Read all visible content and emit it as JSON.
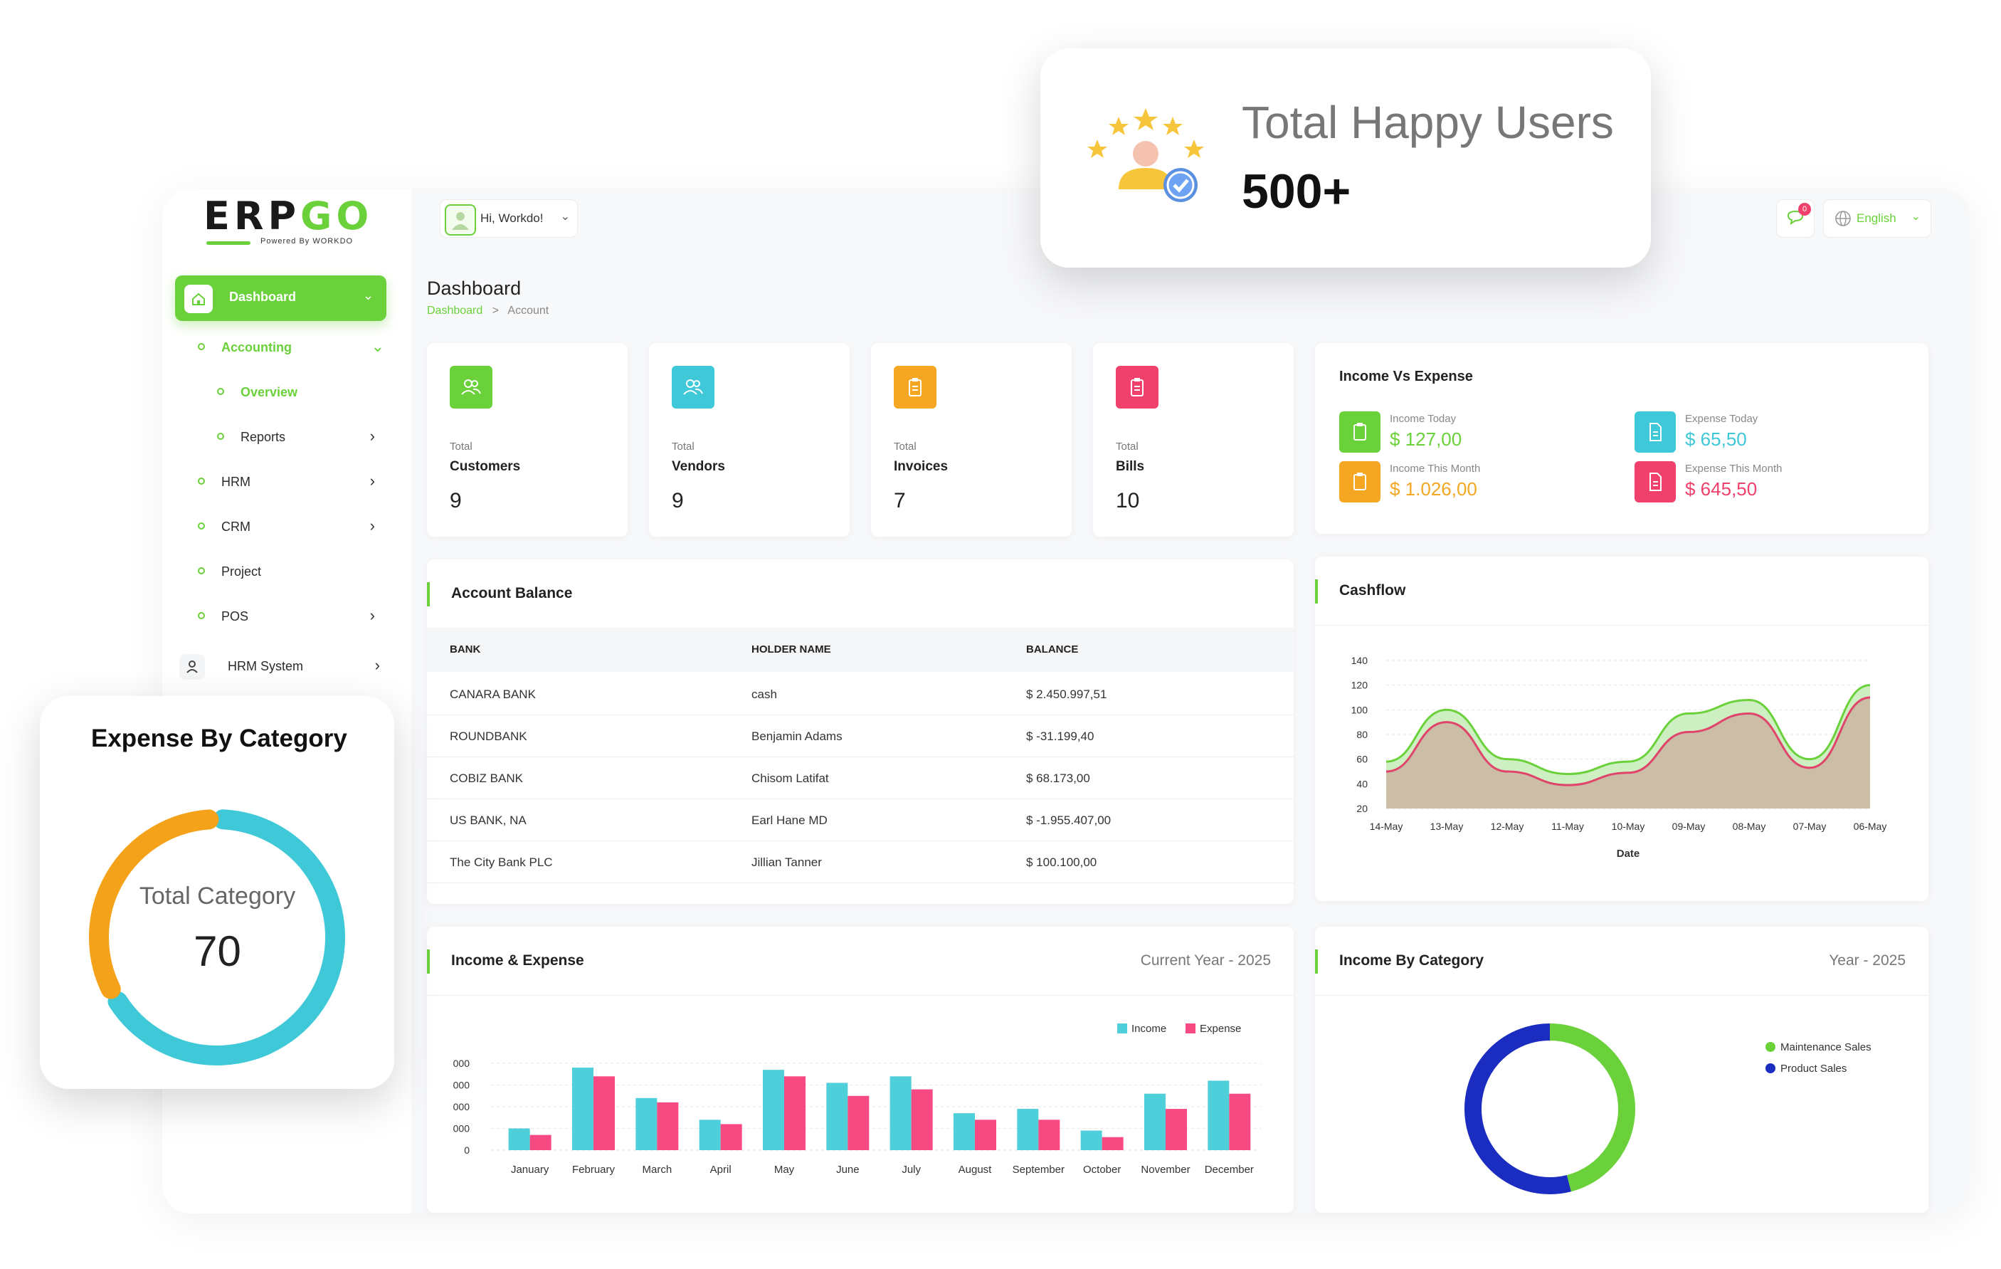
{
  "brand": {
    "logo_main": "ERP",
    "logo_accent": "GO",
    "tagline": "Powered By WORKDO"
  },
  "topbar": {
    "greeting": "Hi, Workdo!",
    "language": "English",
    "notif_count": "0"
  },
  "sidebar": {
    "dashboard": "Dashboard",
    "accounting": "Accounting",
    "overview": "Overview",
    "reports": "Reports",
    "hrm": "HRM",
    "crm": "CRM",
    "project": "Project",
    "pos": "POS",
    "hrm_system": "HRM System"
  },
  "page": {
    "title": "Dashboard",
    "crumb_home": "Dashboard",
    "crumb_sep": ">",
    "crumb_current": "Account"
  },
  "stats": [
    {
      "small": "Total",
      "label": "Customers",
      "value": "9",
      "color": "#6bd13b",
      "icon": "users-icon"
    },
    {
      "small": "Total",
      "label": "Vendors",
      "value": "9",
      "color": "#3ec8d8",
      "icon": "users-icon"
    },
    {
      "small": "Total",
      "label": "Invoices",
      "value": "7",
      "color": "#f5a623",
      "icon": "clipboard-icon"
    },
    {
      "small": "Total",
      "label": "Bills",
      "value": "10",
      "color": "#f0416c",
      "icon": "clipboard-icon"
    }
  ],
  "income_vs_expense": {
    "title": "Income Vs Expense",
    "income_today_label": "Income Today",
    "income_today": "$ 127,00",
    "expense_today_label": "Expense Today",
    "expense_today": "$ 65,50",
    "income_month_label": "Income This Month",
    "income_month": "$ 1.026,00",
    "expense_month_label": "Expense This Month",
    "expense_month": "$ 645,50",
    "colors": {
      "income": "#6bd13b",
      "expense": "#3ec8d8",
      "income_month": "#f5a623",
      "expense_month": "#f0416c"
    }
  },
  "account_balance": {
    "title": "Account Balance",
    "columns": [
      "BANK",
      "HOLDER NAME",
      "BALANCE"
    ],
    "rows": [
      [
        "CANARA BANK",
        "cash",
        "$ 2.450.997,51"
      ],
      [
        "ROUNDBANK",
        "Benjamin Adams",
        "$ -31.199,40"
      ],
      [
        "COBIZ BANK",
        "Chisom Latifat",
        "$ 68.173,00"
      ],
      [
        "US BANK, NA",
        "Earl Hane MD",
        "$ -1.955.407,00"
      ],
      [
        "The City Bank PLC",
        "Jillian Tanner",
        "$ 100.100,00"
      ]
    ]
  },
  "cashflow": {
    "title": "Cashflow",
    "chart_data": {
      "type": "area",
      "x": [
        "14-May",
        "13-May",
        "12-May",
        "11-May",
        "10-May",
        "09-May",
        "08-May",
        "07-May",
        "06-May"
      ],
      "xlabel": "Date",
      "ylim": [
        20,
        140
      ],
      "yticks": [
        20,
        40,
        60,
        80,
        100,
        120,
        140
      ],
      "series": [
        {
          "color": "#6bd13b",
          "values": [
            58,
            100,
            60,
            48,
            58,
            97,
            108,
            60,
            120
          ]
        },
        {
          "color": "#e0446a",
          "values": [
            50,
            90,
            50,
            39,
            49,
            82,
            97,
            53,
            110
          ]
        }
      ]
    }
  },
  "income_expense": {
    "title": "Income & Expense",
    "subtitle": "Current Year - 2025",
    "chart_data": {
      "type": "bar",
      "categories": [
        "January",
        "February",
        "March",
        "April",
        "May",
        "June",
        "July",
        "August",
        "September",
        "October",
        "November",
        "December"
      ],
      "series": [
        {
          "name": "Income",
          "color": "#4fcfd9",
          "values": [
            1000,
            3800,
            2400,
            1400,
            3700,
            3100,
            3400,
            1700,
            1900,
            900,
            2600,
            3200
          ]
        },
        {
          "name": "Expense",
          "color": "#f74a83",
          "values": [
            700,
            3400,
            2200,
            1200,
            3400,
            2500,
            2800,
            1400,
            1400,
            600,
            1900,
            2600
          ]
        }
      ],
      "yticks_visible": [
        "0",
        "000",
        "000",
        "000",
        "000"
      ],
      "ylim": [
        0,
        4000
      ]
    }
  },
  "income_category": {
    "title": "Income By Category",
    "subtitle": "Year - 2025",
    "chart_data": {
      "type": "pie",
      "labels": [
        "Maintenance Sales",
        "Product Sales"
      ],
      "values": [
        46,
        54
      ],
      "colors": [
        "#6bd13b",
        "#1b2cc1"
      ]
    }
  },
  "happy_users": {
    "title": "Total Happy Users",
    "value": "500+"
  },
  "expense_category": {
    "title": "Expense By Category",
    "center_label": "Total Category",
    "center_value": "70",
    "chart_data": {
      "type": "pie",
      "values": [
        33,
        67
      ],
      "colors": [
        "#f5a21b",
        "#3ec8d8"
      ]
    }
  }
}
